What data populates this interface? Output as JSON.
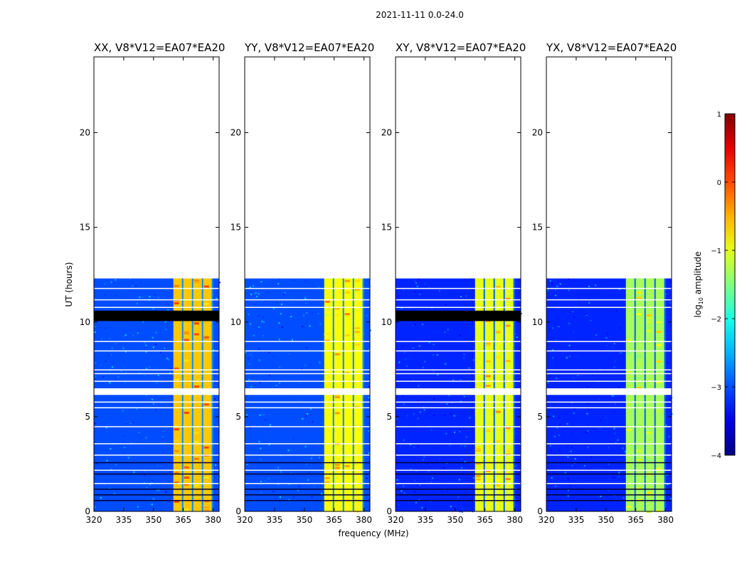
{
  "figure": {
    "suptitle": "2021-11-11 0.0-24.0",
    "xlabel": "frequency (MHz)",
    "ylabel": "UT (hours)",
    "colorbar_label_prefix": "log",
    "colorbar_label_sub": "10",
    "colorbar_label_suffix": " amplitude"
  },
  "chart_data": {
    "type": "heatmap",
    "colormap": "jet",
    "x_ticks": [
      320,
      335,
      350,
      365,
      380
    ],
    "y_ticks": [
      0,
      5,
      10,
      15,
      20
    ],
    "xlim": [
      320,
      383
    ],
    "ylim": [
      0,
      24
    ],
    "data_time_range_hours": [
      0,
      12.3
    ],
    "flagged_time_bands_hours": [
      [
        10.05,
        10.6
      ],
      [
        6.15,
        6.5
      ]
    ],
    "bright_band_mhz": [
      360,
      380
    ],
    "colorbar": {
      "min": -4,
      "max": 1,
      "ticks": [
        -4,
        -3,
        -2,
        -1,
        0,
        1
      ]
    },
    "panels": [
      {
        "title": "XX, V8*V12=EA07*EA20",
        "pol": "XX",
        "black_flag_band": true,
        "background_level": -3.0,
        "band_level": -0.6
      },
      {
        "title": "YY, V8*V12=EA07*EA20",
        "pol": "YY",
        "black_flag_band": false,
        "background_level": -3.0,
        "band_level": -0.9
      },
      {
        "title": "XY, V8*V12=EA07*EA20",
        "pol": "XY",
        "black_flag_band": true,
        "background_level": -3.2,
        "band_level": -1.0
      },
      {
        "title": "YX, V8*V12=EA07*EA20",
        "pol": "YX",
        "black_flag_band": false,
        "background_level": -3.2,
        "band_level": -1.3
      }
    ]
  }
}
